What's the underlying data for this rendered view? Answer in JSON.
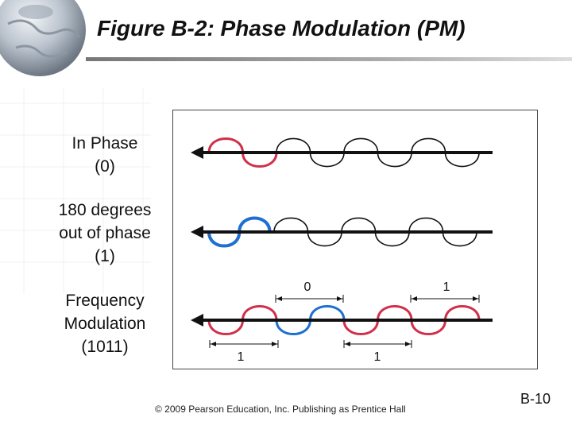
{
  "slide": {
    "title": "Figure B-2: Phase Modulation (PM)",
    "footer": "© 2009 Pearson Education, Inc.  Publishing as Prentice Hall",
    "page_number": "B-10"
  },
  "rows": [
    {
      "label_lines": [
        "In Phase",
        "(0)"
      ]
    },
    {
      "label_lines": [
        "180 degrees",
        "out of phase",
        "(1)"
      ]
    },
    {
      "label_lines": [
        "Frequency",
        "Modulation",
        "(1011)"
      ]
    }
  ],
  "bit_markers": {
    "top": [
      "0",
      "1"
    ],
    "bottom": [
      "1",
      "1"
    ]
  },
  "colors": {
    "highlight_red": "#d0304a",
    "highlight_blue": "#1e6fd0",
    "wave_black": "#111111"
  }
}
